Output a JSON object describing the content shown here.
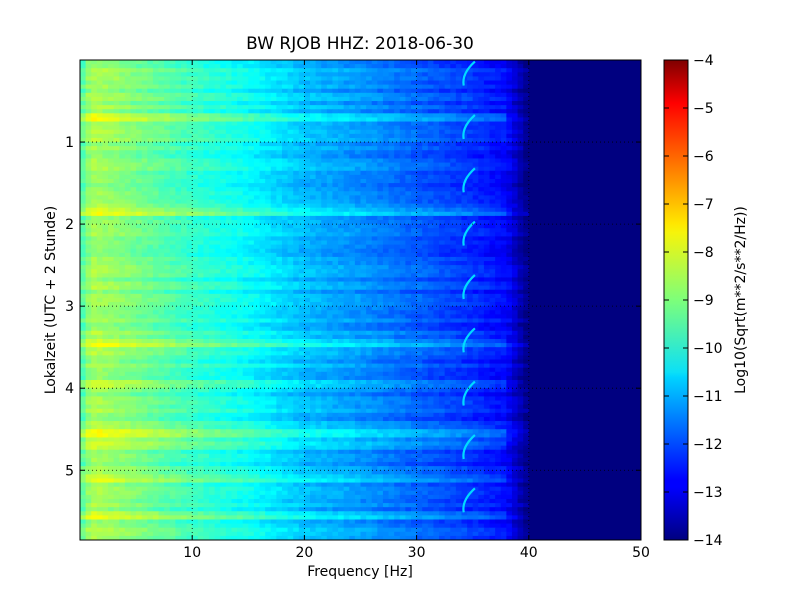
{
  "chart_data": {
    "type": "heatmap",
    "title": "BW RJOB HHZ: 2018-06-30",
    "xlabel": "Frequency [Hz]",
    "ylabel": "Lokalzeit (UTC + 2 Stunde)",
    "colorbar_label": "Log10(Sqrt(m**2/s**2/Hz))",
    "xlim": [
      0,
      50
    ],
    "ylim": [
      5.85,
      0
    ],
    "x_ticks": [
      10,
      20,
      30,
      40,
      50
    ],
    "y_ticks": [
      1,
      2,
      3,
      4,
      5
    ],
    "x_tick_labels": [
      "10",
      "20",
      "30",
      "40",
      "50"
    ],
    "y_tick_labels": [
      "1",
      "2",
      "3",
      "4",
      "5"
    ],
    "colorbar_range": [
      -14,
      -4
    ],
    "colorbar_ticks": [
      -4,
      -5,
      -6,
      -7,
      -8,
      -9,
      -10,
      -11,
      -12,
      -13,
      -14
    ],
    "colorbar_tick_labels": [
      "−4",
      "−5",
      "−6",
      "−7",
      "−8",
      "−9",
      "−10",
      "−11",
      "−12",
      "−13",
      "−14"
    ],
    "colormap": "jet",
    "grid": true,
    "spectral_profile": {
      "frequency_hz": [
        0,
        1,
        3,
        6,
        10,
        15,
        20,
        25,
        30,
        35,
        38,
        40,
        41,
        50
      ],
      "log10_amplitude": [
        -9.6,
        -8.6,
        -8.8,
        -9.2,
        -9.7,
        -10.2,
        -10.9,
        -11.3,
        -11.8,
        -12.3,
        -12.7,
        -14.0,
        -14.0,
        -14.0
      ]
    },
    "narrowband_line": {
      "frequency_hz_range": [
        34,
        35.2
      ],
      "log10_amplitude": -10.6,
      "hour_period": 0.65
    },
    "notable_events_hours": [
      0.7,
      1.85,
      3.45,
      3.95,
      4.55,
      4.7,
      5.1,
      5.55
    ]
  }
}
